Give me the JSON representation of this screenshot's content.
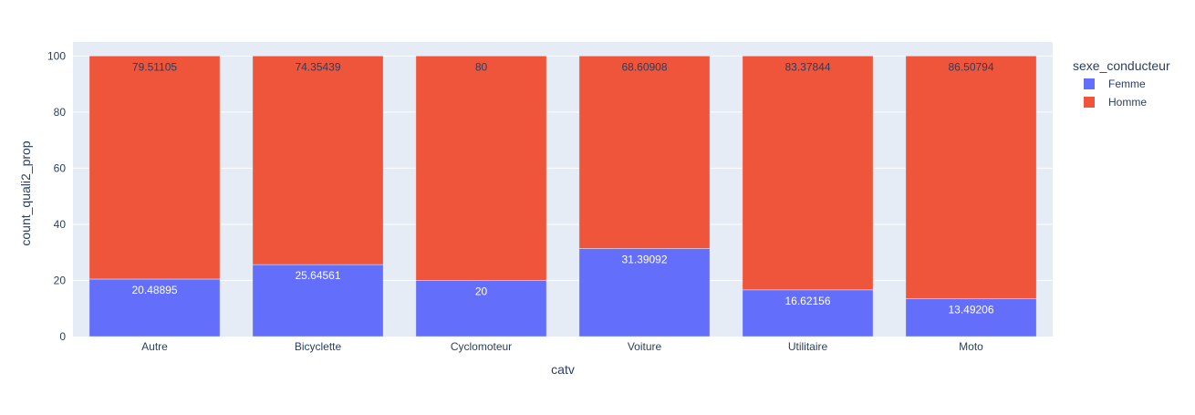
{
  "chart_data": {
    "type": "bar",
    "barmode": "stack",
    "title": "",
    "xlabel": "catv",
    "ylabel": "count_quali2_prop",
    "categories": [
      "Autre",
      "Bicyclette",
      "Cyclomoteur",
      "Voiture",
      "Utilitaire",
      "Moto"
    ],
    "ylim": [
      0,
      105
    ],
    "yticks": [
      0,
      20,
      40,
      60,
      80,
      100
    ],
    "grid": true,
    "legend_title": "sexe_conducteur",
    "legend_position": "top-right",
    "series": [
      {
        "name": "Femme",
        "color": "#636efa",
        "values": [
          20.48895,
          25.64561,
          20,
          31.39092,
          16.62156,
          13.49206
        ],
        "labels": [
          "20.48895",
          "25.64561",
          "20",
          "31.39092",
          "16.62156",
          "13.49206"
        ]
      },
      {
        "name": "Homme",
        "color": "#ef553b",
        "values": [
          79.51105,
          74.35439,
          80,
          68.60908,
          83.37844,
          86.50794
        ],
        "labels": [
          "79.51105",
          "74.35439",
          "80",
          "68.60908",
          "83.37844",
          "86.50794"
        ]
      }
    ]
  }
}
